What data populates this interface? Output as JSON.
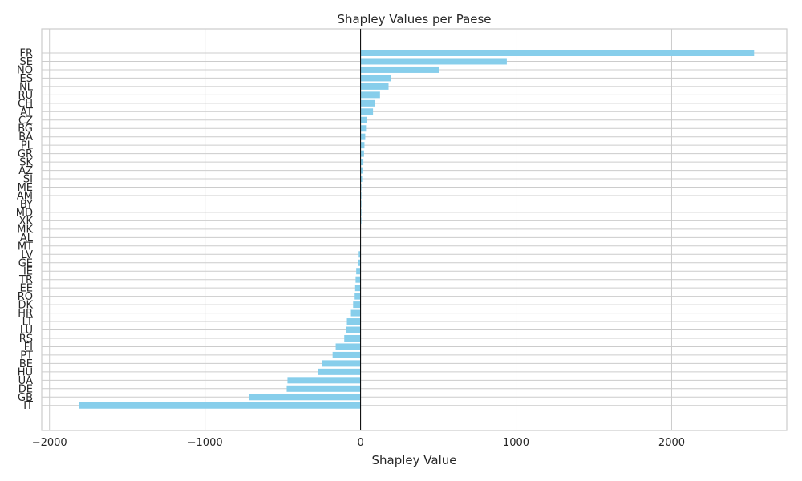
{
  "chart_data": {
    "type": "bar",
    "orientation": "horizontal",
    "title": "Shapley Values per Paese",
    "xlabel": "Shapley Value",
    "ylabel": "",
    "xlim": [
      -2050,
      2740
    ],
    "xticks": [
      -2000,
      -1000,
      0,
      1000,
      2000
    ],
    "xtick_labels": [
      "−2000",
      "−1000",
      "0",
      "1000",
      "2000"
    ],
    "grid": true,
    "bar_color": "#87ceeb",
    "categories": [
      "FR",
      "SE",
      "NO",
      "ES",
      "NL",
      "RU",
      "CH",
      "AT",
      "CZ",
      "BG",
      "BA",
      "PL",
      "GR",
      "SK",
      "AZ",
      "SI",
      "ME",
      "AM",
      "BY",
      "MD",
      "XK",
      "MK",
      "AL",
      "MT",
      "LV",
      "GE",
      "IE",
      "TR",
      "EE",
      "RO",
      "DK",
      "HR",
      "LT",
      "LU",
      "RS",
      "FI",
      "PT",
      "BE",
      "HU",
      "UA",
      "DE",
      "GB",
      "IT"
    ],
    "values": [
      2530,
      940,
      505,
      195,
      180,
      125,
      95,
      80,
      40,
      35,
      30,
      25,
      22,
      18,
      12,
      10,
      5,
      3,
      2,
      1,
      1,
      0,
      0,
      -3,
      -12,
      -18,
      -28,
      -32,
      -35,
      -38,
      -48,
      -62,
      -88,
      -95,
      -105,
      -160,
      -180,
      -250,
      -275,
      -470,
      -475,
      -715,
      -1810
    ]
  }
}
